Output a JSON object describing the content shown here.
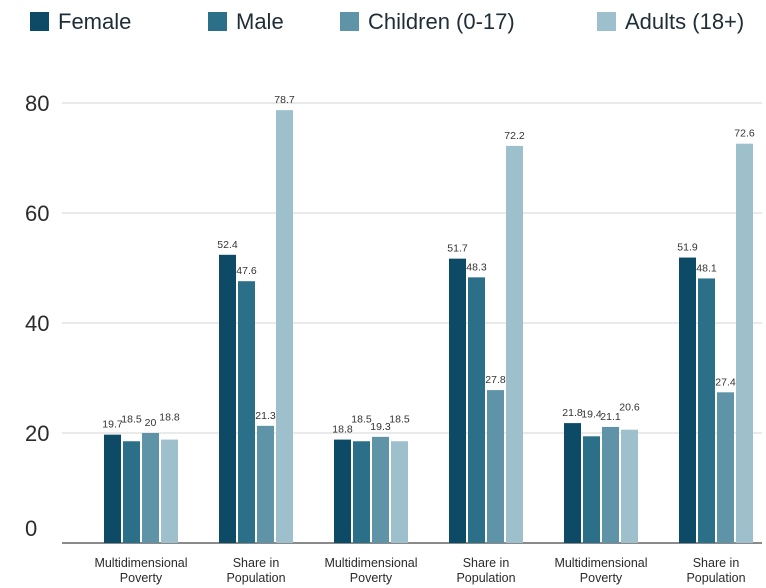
{
  "chart_data": {
    "type": "bar",
    "categories": [
      [
        "Multidimensional",
        "Poverty"
      ],
      [
        "Share in",
        "Population"
      ],
      [
        "Multidimensional",
        "Poverty"
      ],
      [
        "Share in",
        "Population"
      ],
      [
        "Multidimensional",
        "Poverty"
      ],
      [
        "Share in",
        "Population"
      ]
    ],
    "series": [
      {
        "name": "Female",
        "color": "#0d4a66",
        "values": [
          19.7,
          52.4,
          18.8,
          51.7,
          21.8,
          51.9
        ],
        "labels": [
          "19.7",
          "52.4",
          "18.8",
          "51.7",
          "21.8",
          "51.9"
        ]
      },
      {
        "name": "Male",
        "color": "#2c6f88",
        "values": [
          18.5,
          47.6,
          18.5,
          48.3,
          19.4,
          48.1
        ],
        "labels": [
          "18.5",
          "47.6",
          "18.5",
          "48.3",
          "19.4",
          "48.1"
        ]
      },
      {
        "name": "Children (0-17)",
        "color": "#5f93a8",
        "values": [
          20,
          21.3,
          19.3,
          27.8,
          21.1,
          27.4
        ],
        "labels": [
          "20",
          "21.3",
          "19.3",
          "27.8",
          "21.1",
          "27.4"
        ]
      },
      {
        "name": "Adults (18+)",
        "color": "#9ec0cd",
        "values": [
          18.8,
          78.7,
          18.5,
          72.2,
          20.6,
          72.6
        ],
        "labels": [
          "18.8",
          "78.7",
          "18.5",
          "72.2",
          "20.6",
          "72.6"
        ]
      }
    ],
    "yticks": [
      0,
      20,
      40,
      60,
      80
    ],
    "ylim": [
      0,
      80
    ],
    "grid": true,
    "legend": "top",
    "title": "",
    "xlabel": "",
    "ylabel": ""
  }
}
